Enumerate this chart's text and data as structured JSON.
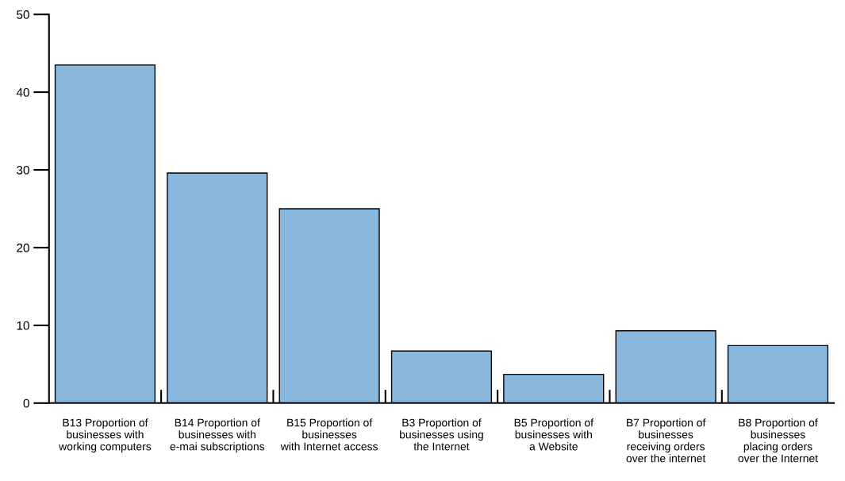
{
  "chart_data": {
    "type": "bar",
    "categories": [
      "B13 Proportion of\nbusinesses with\nworking computers",
      "B14 Proportion of\nbusinesses with\ne-mai subscriptions",
      "B15 Proportion of\nbusinesses\nwith Internet access",
      "B3 Proportion of\nbusinesses using\nthe Internet",
      "B5 Proportion of\nbusinesses with\na Website",
      "B7 Proportion of\nbusinesses\nreceiving orders\nover the internet",
      "B8 Proportion of\nbusinesses\nplacing orders\nover the Internet"
    ],
    "values": [
      43.5,
      29.6,
      25.0,
      6.7,
      3.7,
      9.3,
      7.4
    ],
    "color": "#88b8de",
    "ylim": [
      0,
      50
    ],
    "yticks": [
      0,
      10,
      20,
      30,
      40,
      50
    ],
    "grid": false
  }
}
